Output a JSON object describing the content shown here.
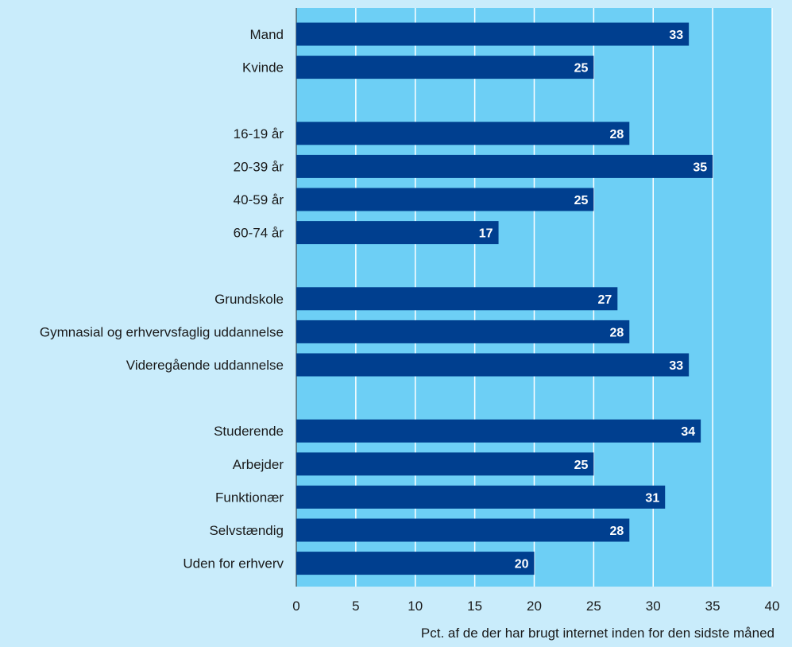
{
  "chart_data": {
    "type": "bar",
    "orientation": "horizontal",
    "title": "",
    "xlabel": "Pct. af de der har brugt internet inden for den sidste måned",
    "ylabel": "",
    "xlim": [
      0,
      40
    ],
    "xticks": [
      0,
      5,
      10,
      15,
      20,
      25,
      30,
      35,
      40
    ],
    "grid": true,
    "legend": "none",
    "colors": {
      "bar": "#003f8f",
      "plot_bg": "#6dcff5",
      "page_bg": "#c9ecfb",
      "grid": "#ffffff",
      "value_text": "#ffffff"
    },
    "groups": [
      {
        "items": [
          {
            "label": "Mand",
            "value": 33
          },
          {
            "label": "Kvinde",
            "value": 25
          }
        ]
      },
      {
        "items": [
          {
            "label": "16-19 år",
            "value": 28
          },
          {
            "label": "20-39 år",
            "value": 35
          },
          {
            "label": "40-59 år",
            "value": 25
          },
          {
            "label": "60-74 år",
            "value": 17
          }
        ]
      },
      {
        "items": [
          {
            "label": "Grundskole",
            "value": 27
          },
          {
            "label": "Gymnasial og erhvervsfaglig uddannelse",
            "value": 28
          },
          {
            "label": "Videregående uddannelse",
            "value": 33
          }
        ]
      },
      {
        "items": [
          {
            "label": "Studerende",
            "value": 34
          },
          {
            "label": "Arbejder",
            "value": 25
          },
          {
            "label": "Funktionær",
            "value": 31
          },
          {
            "label": "Selvstændig",
            "value": 28
          },
          {
            "label": "Uden for erhverv",
            "value": 20
          }
        ]
      }
    ]
  }
}
